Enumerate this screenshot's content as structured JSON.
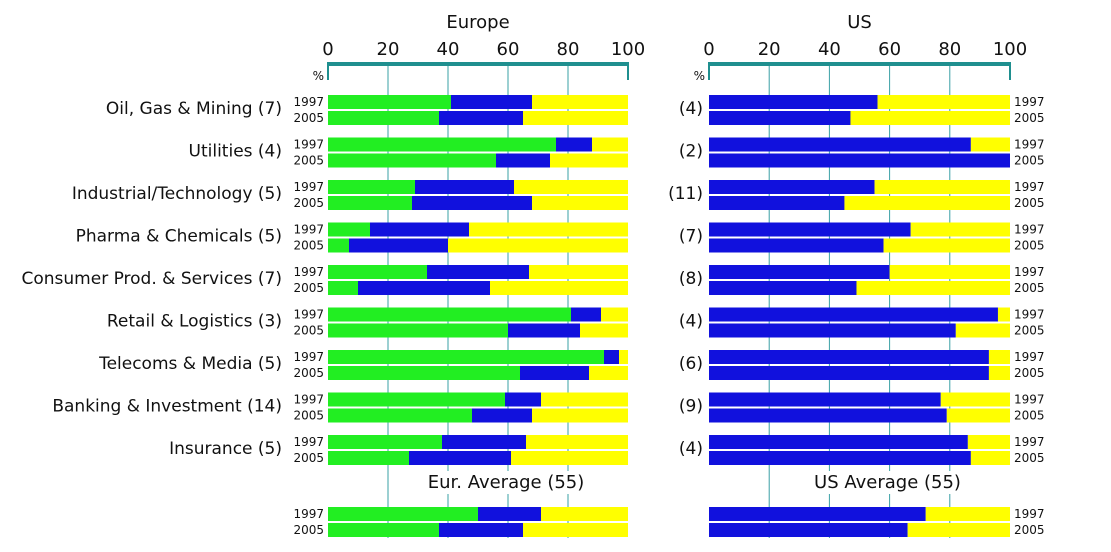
{
  "chart_data": {
    "type": "bar",
    "orientation": "horizontal",
    "stacked": true,
    "unit_label": "%",
    "xlim": [
      0,
      100
    ],
    "ticks": [
      "0",
      "20",
      "40",
      "60",
      "80",
      "100"
    ],
    "years": [
      "1997",
      "2005"
    ],
    "colors": {
      "green": "#22ee22",
      "blue": "#1111dd",
      "yellow": "#ffff00"
    },
    "panels": [
      {
        "title": "Europe",
        "average_label": "Eur. Average (55)",
        "categories": [
          {
            "label": "Oil, Gas & Mining (7)",
            "y1997": [
              41,
              27,
              32
            ],
            "y2005": [
              37,
              28,
              35
            ]
          },
          {
            "label": "Utilities (4)",
            "y1997": [
              76,
              12,
              12
            ],
            "y2005": [
              56,
              18,
              26
            ]
          },
          {
            "label": "Industrial/Technology (5)",
            "y1997": [
              29,
              33,
              38
            ],
            "y2005": [
              28,
              40,
              32
            ]
          },
          {
            "label": "Pharma & Chemicals (5)",
            "y1997": [
              14,
              33,
              53
            ],
            "y2005": [
              7,
              33,
              60
            ]
          },
          {
            "label": "Consumer Prod. & Services (7)",
            "y1997": [
              33,
              34,
              33
            ],
            "y2005": [
              10,
              44,
              46
            ]
          },
          {
            "label": "Retail & Logistics (3)",
            "y1997": [
              81,
              10,
              9
            ],
            "y2005": [
              60,
              24,
              16
            ]
          },
          {
            "label": "Telecoms & Media (5)",
            "y1997": [
              92,
              5,
              3
            ],
            "y2005": [
              64,
              23,
              13
            ]
          },
          {
            "label": "Banking & Investment (14)",
            "y1997": [
              59,
              12,
              29
            ],
            "y2005": [
              48,
              20,
              32
            ]
          },
          {
            "label": "Insurance (5)",
            "y1997": [
              38,
              28,
              34
            ],
            "y2005": [
              27,
              34,
              39
            ]
          }
        ],
        "average": {
          "y1997": [
            50,
            21,
            29
          ],
          "y2005": [
            37,
            28,
            35
          ]
        }
      },
      {
        "title": "US",
        "average_label": "US Average (55)",
        "categories": [
          {
            "label": "(4)",
            "y1997": [
              0,
              56,
              44
            ],
            "y2005": [
              0,
              47,
              53
            ]
          },
          {
            "label": "(2)",
            "y1997": [
              0,
              87,
              13
            ],
            "y2005": [
              0,
              100,
              0
            ]
          },
          {
            "label": "(11)",
            "y1997": [
              0,
              55,
              45
            ],
            "y2005": [
              0,
              45,
              55
            ]
          },
          {
            "label": "(7)",
            "y1997": [
              0,
              67,
              33
            ],
            "y2005": [
              0,
              58,
              42
            ]
          },
          {
            "label": "(8)",
            "y1997": [
              0,
              60,
              40
            ],
            "y2005": [
              0,
              49,
              51
            ]
          },
          {
            "label": "(4)",
            "y1997": [
              0,
              96,
              4
            ],
            "y2005": [
              0,
              82,
              18
            ]
          },
          {
            "label": "(6)",
            "y1997": [
              0,
              93,
              7
            ],
            "y2005": [
              0,
              93,
              7
            ]
          },
          {
            "label": "(9)",
            "y1997": [
              0,
              77,
              23
            ],
            "y2005": [
              0,
              79,
              21
            ]
          },
          {
            "label": "(4)",
            "y1997": [
              0,
              86,
              14
            ],
            "y2005": [
              0,
              87,
              13
            ]
          }
        ],
        "average": {
          "y1997": [
            0,
            72,
            28
          ],
          "y2005": [
            0,
            66,
            34
          ]
        }
      }
    ]
  }
}
